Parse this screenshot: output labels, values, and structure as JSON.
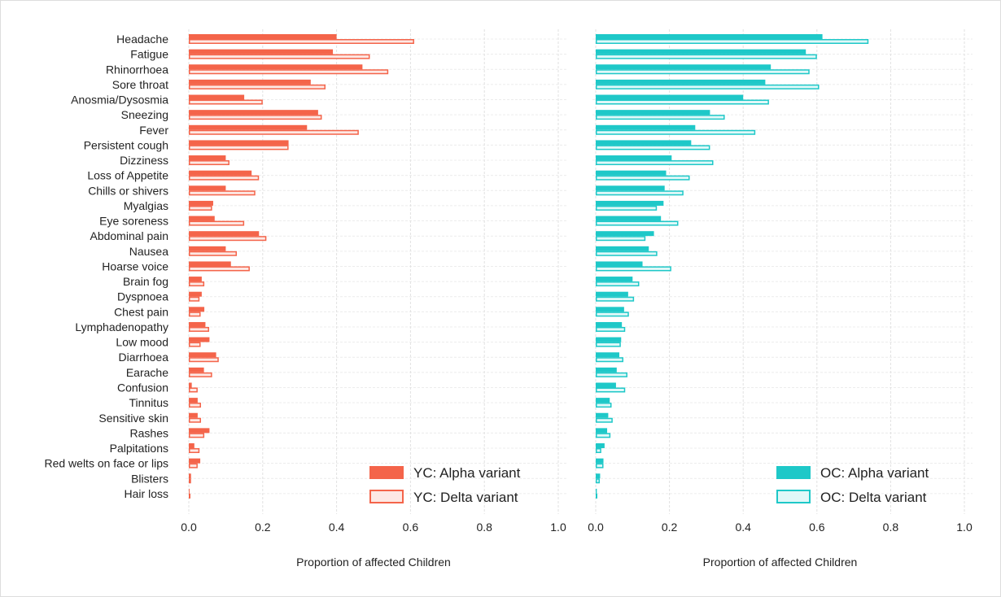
{
  "chart_data": [
    {
      "type": "bar",
      "orientation": "horizontal",
      "categories": [
        "Headache",
        "Fatigue",
        "Rhinorrhoea",
        "Sore throat",
        "Anosmia/Dysosmia",
        "Sneezing",
        "Fever",
        "Persistent cough",
        "Dizziness",
        "Loss of Appetite",
        "Chills or shivers",
        "Myalgias",
        "Eye soreness",
        "Abdominal pain",
        "Nausea",
        "Hoarse voice",
        "Brain fog",
        "Dyspnoea",
        "Chest pain",
        "Lymphadenopathy",
        "Low mood",
        "Diarrhoea",
        "Earache",
        "Confusion",
        "Tinnitus",
        "Sensitive skin",
        "Rashes",
        "Palpitations",
        "Red welts on face or lips",
        "Blisters",
        "Hair loss"
      ],
      "series": [
        {
          "name": "YC: Alpha variant",
          "style": "filled",
          "color": "#f4644a",
          "values": [
            0.4,
            0.39,
            0.47,
            0.33,
            0.15,
            0.35,
            0.32,
            0.27,
            0.1,
            0.17,
            0.1,
            0.066,
            0.07,
            0.19,
            0.1,
            0.114,
            0.035,
            0.035,
            0.042,
            0.045,
            0.056,
            0.074,
            0.041,
            0.008,
            0.024,
            0.024,
            0.056,
            0.015,
            0.031,
            0.006,
            0.002
          ]
        },
        {
          "name": "YC: Delta variant",
          "style": "outlined",
          "color": "#f4644a",
          "fill": "#fde8e4",
          "values": [
            0.61,
            0.49,
            0.54,
            0.37,
            0.2,
            0.36,
            0.46,
            0.27,
            0.11,
            0.19,
            0.18,
            0.063,
            0.15,
            0.21,
            0.13,
            0.165,
            0.042,
            0.029,
            0.032,
            0.055,
            0.032,
            0.081,
            0.063,
            0.024,
            0.033,
            0.033,
            0.042,
            0.029,
            0.024,
            0.006,
            0.002
          ]
        }
      ],
      "xlabel": "Proportion of affected Children",
      "xlim": [
        0,
        1.0
      ],
      "xticks": [
        "0.0",
        "0.2",
        "0.4",
        "0.6",
        "0.8",
        "1.0"
      ],
      "grid": true,
      "legend": "bottom-right"
    },
    {
      "type": "bar",
      "orientation": "horizontal",
      "categories": [
        "Headache",
        "Fatigue",
        "Rhinorrhoea",
        "Sore throat",
        "Anosmia/Dysosmia",
        "Sneezing",
        "Fever",
        "Persistent cough",
        "Dizziness",
        "Loss of Appetite",
        "Chills or shivers",
        "Myalgias",
        "Eye soreness",
        "Abdominal pain",
        "Nausea",
        "Hoarse voice",
        "Brain fog",
        "Dyspnoea",
        "Chest pain",
        "Lymphadenopathy",
        "Low mood",
        "Diarrhoea",
        "Earache",
        "Confusion",
        "Tinnitus",
        "Sensitive skin",
        "Rashes",
        "Palpitations",
        "Red welts on face or lips",
        "Blisters",
        "Hair loss"
      ],
      "series": [
        {
          "name": "OC: Alpha variant",
          "style": "filled",
          "color": "#1ec8c8",
          "values": [
            0.615,
            0.57,
            0.475,
            0.46,
            0.4,
            0.31,
            0.27,
            0.259,
            0.206,
            0.191,
            0.187,
            0.184,
            0.177,
            0.158,
            0.144,
            0.127,
            0.1,
            0.088,
            0.077,
            0.071,
            0.069,
            0.064,
            0.057,
            0.055,
            0.038,
            0.034,
            0.031,
            0.024,
            0.021,
            0.012,
            0.003
          ]
        },
        {
          "name": "OC: Delta variant",
          "style": "outlined",
          "color": "#1ec8c8",
          "fill": "#e0f8f8",
          "values": [
            0.74,
            0.6,
            0.58,
            0.606,
            0.47,
            0.35,
            0.433,
            0.31,
            0.319,
            0.255,
            0.238,
            0.166,
            0.224,
            0.135,
            0.167,
            0.205,
            0.118,
            0.104,
            0.09,
            0.08,
            0.068,
            0.075,
            0.086,
            0.08,
            0.043,
            0.046,
            0.04,
            0.015,
            0.021,
            0.011,
            0.002
          ]
        }
      ],
      "xlabel": "Proportion of affected Children",
      "xlim": [
        0,
        1.0
      ],
      "xticks": [
        "0.0",
        "0.2",
        "0.4",
        "0.6",
        "0.8",
        "1.0"
      ],
      "grid": true,
      "legend": "bottom-right"
    }
  ]
}
